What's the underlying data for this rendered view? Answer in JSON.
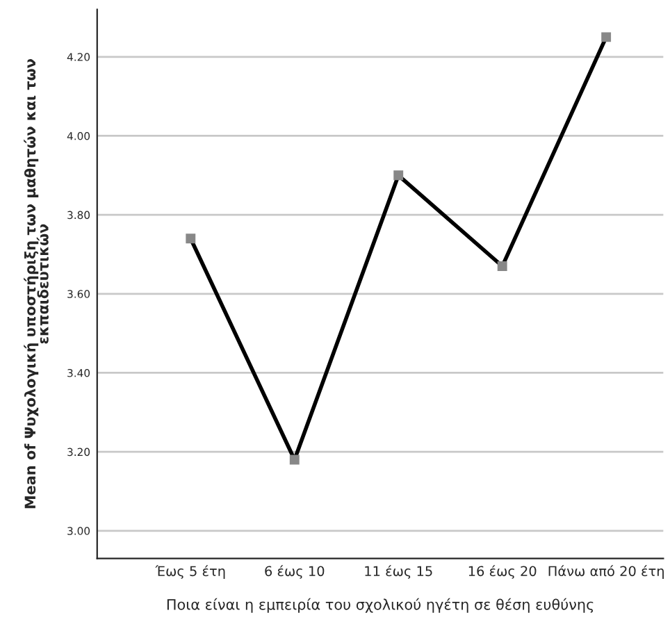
{
  "chart_data": {
    "type": "line",
    "categories": [
      "Έως 5 έτη",
      "6 έως 10",
      "11 έως 15",
      "16 έως 20",
      "Πάνω από 20 έτη"
    ],
    "series": [
      {
        "color": "#000000",
        "values": [
          3.74,
          3.18,
          3.9,
          3.67,
          4.25
        ]
      }
    ],
    "xlabel": "Ποια είναι η εμπειρία του σχολικού ηγέτη σε θέση ευθύνης",
    "ylabel": "Mean of Ψυχολογική υποστήριξη των μαθητών και των\nεκπαιδευτικών",
    "ylim": [
      2.93,
      4.32
    ],
    "yticks": [
      {
        "value": 3.0,
        "label": "3.00"
      },
      {
        "value": 3.2,
        "label": "3.20"
      },
      {
        "value": 3.4,
        "label": "3.40"
      },
      {
        "value": 3.6,
        "label": "3.60"
      },
      {
        "value": 3.8,
        "label": "3.80"
      },
      {
        "value": 4.0,
        "label": "4.00"
      },
      {
        "value": 4.2,
        "label": "4.20"
      }
    ],
    "grid": "y",
    "marker": "square",
    "line_style": "solid"
  }
}
